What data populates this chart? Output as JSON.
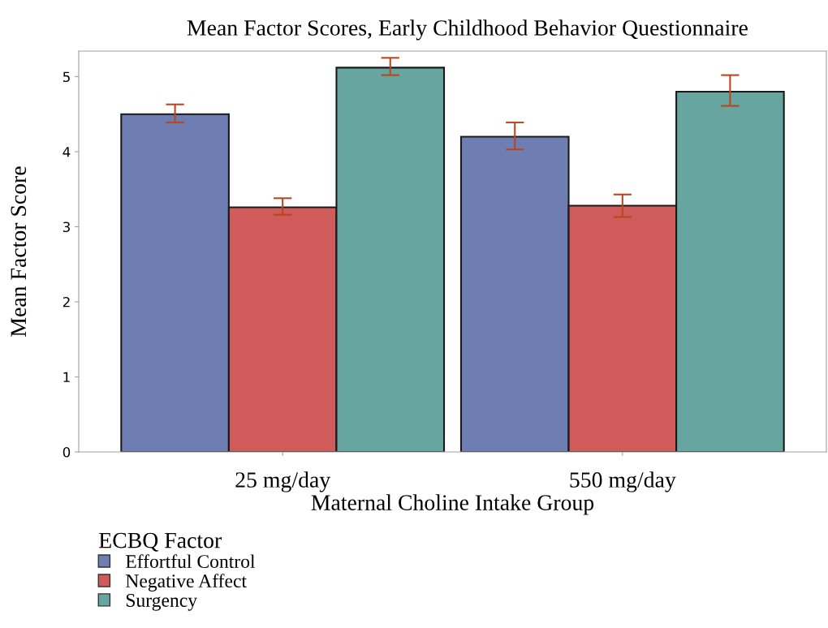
{
  "chart_data": {
    "type": "bar",
    "title": "Mean Factor Scores, Early Childhood Behavior Questionnaire",
    "xlabel": "Maternal Choline Intake Group",
    "ylabel": "Mean Factor Score",
    "legend_title": "ECBQ Factor",
    "categories": [
      "25 mg/day",
      "550 mg/day"
    ],
    "series": [
      {
        "name": "Effortful Control",
        "color": "#6f7eb2",
        "values": [
          4.5,
          4.2
        ],
        "errors": [
          [
            4.39,
            4.63
          ],
          [
            4.03,
            4.39
          ]
        ]
      },
      {
        "name": "Negative Affect",
        "color": "#d05b5b",
        "values": [
          3.26,
          3.28
        ],
        "errors": [
          [
            3.16,
            3.38
          ],
          [
            3.13,
            3.43
          ]
        ]
      },
      {
        "name": "Surgency",
        "color": "#67a5a0",
        "values": [
          5.12,
          4.8
        ],
        "errors": [
          [
            5.02,
            5.25
          ],
          [
            4.61,
            5.02
          ]
        ]
      }
    ],
    "ylim": [
      0,
      5.34
    ],
    "yticks": [
      0,
      1,
      2,
      3,
      4,
      5
    ],
    "grid": false,
    "legend": "bottom left"
  }
}
